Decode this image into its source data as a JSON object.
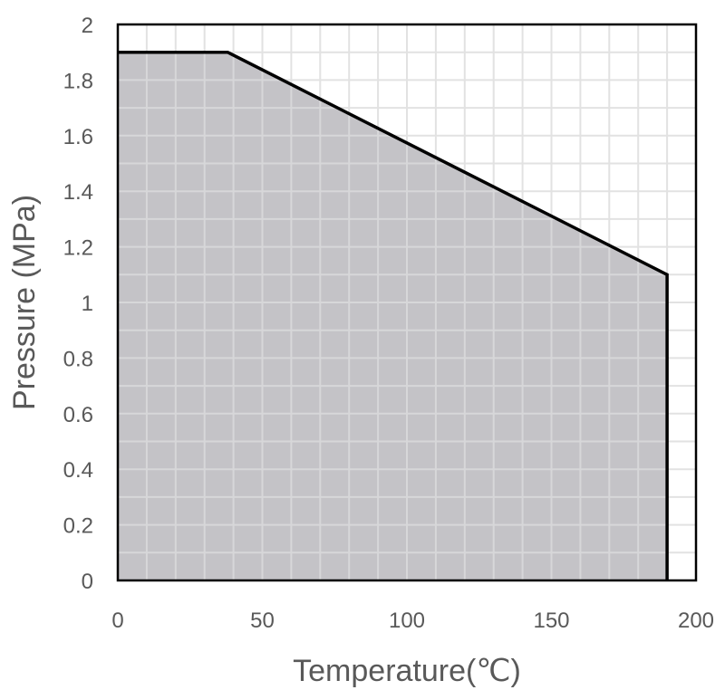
{
  "chart_data": {
    "type": "area",
    "xlabel": "Temperature(℃)",
    "ylabel": "Pressure (MPa)",
    "xlim": [
      0,
      200
    ],
    "ylim": [
      0,
      2
    ],
    "x_ticks": [
      0,
      50,
      100,
      150,
      200
    ],
    "x_tick_labels": [
      "0",
      "50",
      "100",
      "150",
      "200"
    ],
    "y_ticks": [
      0,
      0.2,
      0.4,
      0.6,
      0.8,
      1,
      1.2,
      1.4,
      1.6,
      1.8,
      2
    ],
    "y_tick_labels": [
      "0",
      "0.2",
      "0.4",
      "0.6",
      "0.8",
      "1",
      "1.2",
      "1.4",
      "1.6",
      "1.8",
      "2"
    ],
    "x_grid_step": 10,
    "y_grid_step": 0.1,
    "grid": true,
    "series": [
      {
        "x": [
          0,
          38,
          190,
          190
        ],
        "y": [
          1.9,
          1.9,
          1.1,
          0
        ]
      }
    ],
    "colors": {
      "fill": "#c4c3c7",
      "line": "#000000",
      "grid": "#e2e2e2",
      "grid_on_fill": "#d7d7d9",
      "axis": "#000000",
      "text": "#595959"
    }
  }
}
